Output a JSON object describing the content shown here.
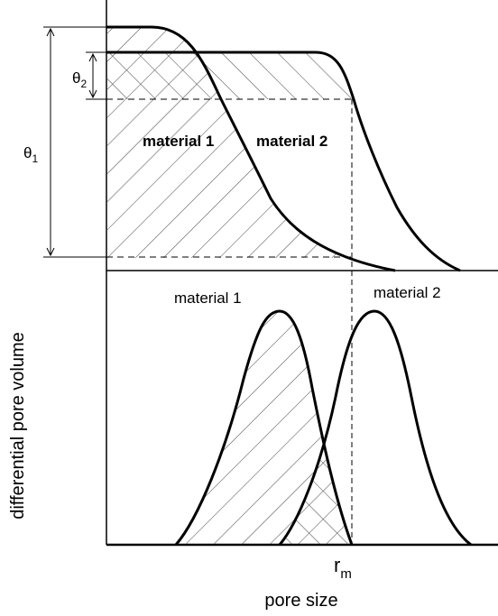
{
  "labels": {
    "theta2_base": "θ",
    "theta2_sub": "2",
    "theta1_base": "θ",
    "theta1_sub": "1",
    "top_material_1": "material 1",
    "top_material_2": "material 2",
    "bottom_material_1": "material 1",
    "bottom_material_2": "material 2",
    "rm_base": "r",
    "rm_sub": "m",
    "x_axis": "pore size",
    "y_axis": "differential pore volume"
  },
  "colors": {
    "line": "#000000",
    "hatch": "#444444",
    "background": "#ffffff"
  }
}
